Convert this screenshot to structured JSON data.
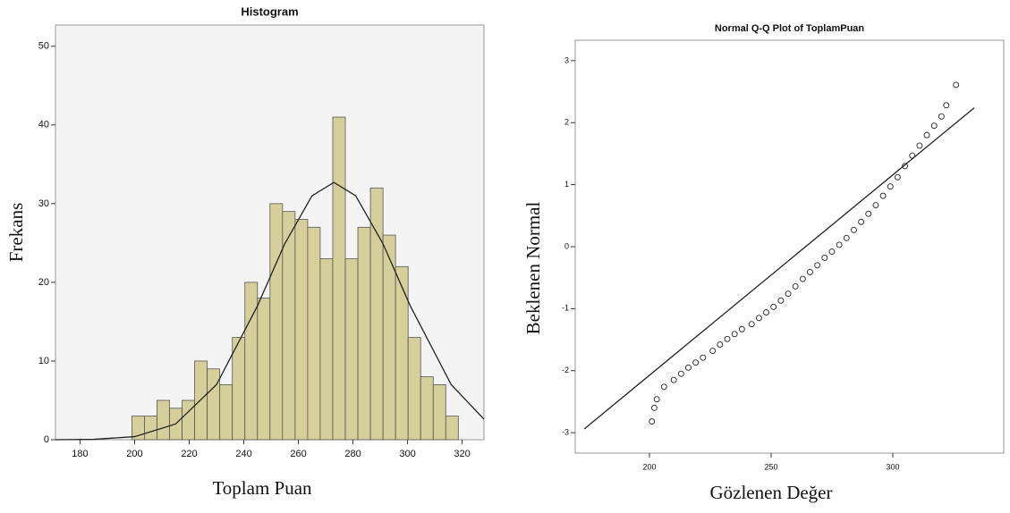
{
  "chart_data": [
    {
      "type": "histogram",
      "title": "Histogram",
      "x_label": "Toplam Puan",
      "y_label": "Frekans",
      "bins": [
        199,
        203.6,
        208.2,
        212.8,
        217.4,
        222,
        226.6,
        231.2,
        235.8,
        240.4,
        245,
        249.6,
        254.2,
        258.8,
        263.4,
        268,
        272.6,
        277.2,
        281.8,
        286.4,
        291,
        295.6,
        300.2,
        304.8,
        309.4,
        314,
        318.6
      ],
      "counts": [
        3,
        3,
        5,
        4,
        5,
        10,
        9,
        7,
        13,
        20,
        18,
        30,
        29,
        28,
        27,
        23,
        41,
        23,
        27,
        32,
        26,
        22,
        13,
        8,
        7,
        3
      ],
      "color": "#d6cf9b",
      "curve": {
        "x": [
          171,
          185,
          200,
          215,
          230,
          245,
          255,
          265,
          273,
          281,
          291,
          301,
          316,
          328
        ],
        "values": [
          0,
          0.05,
          0.39,
          1.99,
          7.0,
          17.0,
          24.9,
          31.0,
          32.7,
          31.0,
          24.9,
          17.0,
          7.0,
          2.6
        ]
      },
      "xlim": [
        171,
        328
      ],
      "ylim": [
        0,
        52.7
      ],
      "xticks": [
        180,
        200,
        220,
        240,
        260,
        280,
        300,
        320
      ],
      "yticks": [
        0,
        10,
        20,
        30,
        40,
        50
      ]
    },
    {
      "type": "scatter",
      "title": "Normal Q-Q Plot of ToplamPuan",
      "x_label": "Gözlenen Değer",
      "y_label": "Beklenen Normal",
      "x": [
        201,
        202,
        203,
        206,
        210,
        213,
        216,
        219,
        222,
        226,
        229,
        232,
        235,
        238,
        242,
        245,
        248,
        251,
        254,
        257,
        260,
        263,
        266,
        269,
        272,
        275,
        278,
        281,
        284,
        287,
        290,
        293,
        296,
        299,
        302,
        305,
        308,
        311,
        314,
        317,
        320,
        322,
        326
      ],
      "values": [
        -2.82,
        -2.6,
        -2.46,
        -2.26,
        -2.15,
        -2.05,
        -1.95,
        -1.87,
        -1.79,
        -1.68,
        -1.58,
        -1.49,
        -1.41,
        -1.33,
        -1.25,
        -1.15,
        -1.06,
        -0.97,
        -0.87,
        -0.76,
        -0.64,
        -0.52,
        -0.41,
        -0.3,
        -0.18,
        -0.08,
        0.03,
        0.14,
        0.27,
        0.4,
        0.53,
        0.67,
        0.82,
        0.97,
        1.12,
        1.3,
        1.47,
        1.63,
        1.8,
        1.95,
        2.1,
        2.28,
        2.61
      ],
      "line": {
        "x": [
          173.2,
          333.5
        ],
        "values": [
          -2.94,
          2.24
        ]
      },
      "xlim": [
        169.5,
        345.6
      ],
      "ylim": [
        -3.33,
        3.33
      ],
      "xticks": [
        200,
        250,
        300
      ],
      "yticks": [
        -3,
        -2,
        -1,
        0,
        1,
        2,
        3
      ]
    }
  ]
}
